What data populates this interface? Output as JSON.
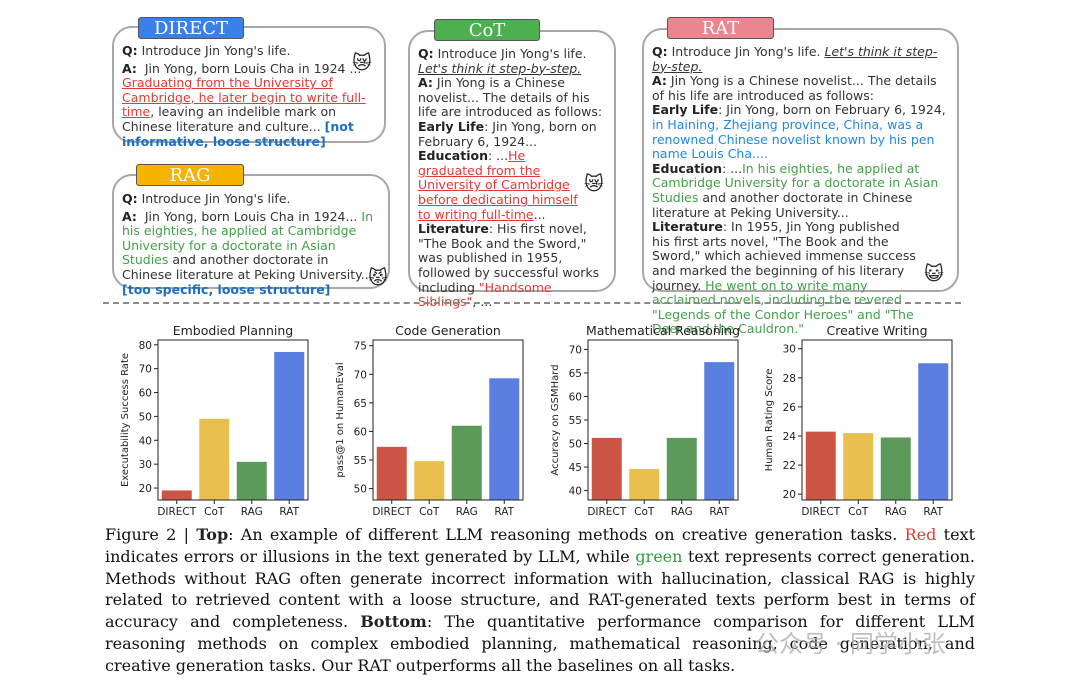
{
  "panels": {
    "direct": {
      "tag": "DIRECT",
      "q_label": "Q:",
      "q_text": "Introduce Jin Yong's life.",
      "a_label": "A:",
      "a_text1": "Jin Yong, born Louis Cha in 1924 ...",
      "a_red": "Graduating from the University of Cambridge, he later begin to write full-time",
      "a_text2": ", leaving an indelible mark on Chinese literature and culture...",
      "a_note": "[not informative, loose structure]"
    },
    "rag": {
      "tag": "RAG",
      "q_label": "Q:",
      "q_text": "Introduce Jin Yong's life.",
      "a_label": "A:",
      "a_text1": "Jin Yong, born Louis Cha in 1924...",
      "a_green": "In his eighties, he applied at Cambridge University for a doctorate in Asian Studies",
      "a_text2": "and another doctorate in Chinese literature at Peking University...",
      "a_note": "[too specific, loose structure]"
    },
    "cot": {
      "tag": "CoT",
      "q_label": "Q:",
      "q_text": "Introduce Jin Yong's life.",
      "q_italic": "Let's think it step-by-step.",
      "a_label": "A:",
      "a_text1": "Jin Yong is a Chinese novelist... The details of his life are introduced as follows:",
      "early_label": "Early Life",
      "early_text": ": Jin Yong, born on February 6, 1924...",
      "edu_label": "Education",
      "edu_text": ": ...",
      "edu_red": "He graduated from the University of Cambridge before dedicating himself to writing full-time",
      "edu_text2": "...",
      "lit_label": "Literature",
      "lit_text": ": His first novel, \"The Book and the Sword,\" was published in 1955, followed by successful works including",
      "lit_red": "\"Handsome Siblings\"",
      "lit_text2": ", ..."
    },
    "rat": {
      "tag": "RAT",
      "q_label": "Q:",
      "q_text": "Introduce Jin Yong's life.",
      "q_italic": "Let's think it step-by-step.",
      "a_label": "A:",
      "a_text1": "Jin Yong is a Chinese novelist... The details of his life are introduced as follows:",
      "early_label": "Early Life",
      "early_text": ": Jin Yong, born on February 6, 1924,",
      "early_blue": "in Haining, Zhejiang province, China, was a renowned Chinese novelist known by his pen name Louis Cha....",
      "edu_label": "Education",
      "edu_text": ": ...",
      "edu_green": "In his eighties, he applied at Cambridge University for a doctorate in Asian Studies",
      "edu_text2": "and another doctorate in Chinese literature at Peking University...",
      "lit_label": "Literature",
      "lit_text": ": In 1955, Jin Yong published his first arts novel, \"The Book and the Sword,\" which achieved immense success and marked the beginning of his literary journey.",
      "lit_green": "He went on to write many acclaimed novels, including the revered \"Legends of the Condor Heroes\" and \"The Deer and the Cauldron.\""
    }
  },
  "emojis": {
    "direct": "😿",
    "rag": "😾",
    "cot": "😿",
    "rat": "😺"
  },
  "colors": {
    "DIRECT": "#cd5545",
    "CoT": "#e9c050",
    "RAG": "#5c9a5a",
    "RAT": "#5a7fe0"
  },
  "chart_data": [
    {
      "type": "bar",
      "title": "Embodied Planning",
      "ylabel": "Executability Success Rate",
      "categories": [
        "DIRECT",
        "CoT",
        "RAG",
        "RAT"
      ],
      "values": [
        19,
        49,
        31,
        77
      ],
      "ylim": [
        15,
        82
      ],
      "yticks": [
        20,
        30,
        40,
        50,
        60,
        70,
        80
      ]
    },
    {
      "type": "bar",
      "title": "Code Generation",
      "ylabel": "pass@1 on HumanEval",
      "categories": [
        "DIRECT",
        "CoT",
        "RAG",
        "RAT"
      ],
      "values": [
        57.3,
        54.8,
        61.0,
        69.3
      ],
      "ylim": [
        48,
        76
      ],
      "yticks": [
        50,
        55,
        60,
        65,
        70,
        75
      ]
    },
    {
      "type": "bar",
      "title": "Mathematical Reasoning",
      "ylabel": "Accuracy on GSMHard",
      "categories": [
        "DIRECT",
        "CoT",
        "RAG",
        "RAT"
      ],
      "values": [
        51.2,
        44.6,
        51.2,
        67.3
      ],
      "ylim": [
        38,
        72
      ],
      "yticks": [
        40,
        45,
        50,
        55,
        60,
        65,
        70
      ]
    },
    {
      "type": "bar",
      "title": "Creative Writing",
      "ylabel": "Human Rating Score",
      "categories": [
        "DIRECT",
        "CoT",
        "RAG",
        "RAT"
      ],
      "values": [
        24.3,
        24.2,
        23.9,
        29.0
      ],
      "ylim": [
        19.6,
        30.6
      ],
      "yticks": [
        20,
        22,
        24,
        26,
        28,
        30
      ]
    }
  ],
  "caption": {
    "fig_label": "Figure 2 | ",
    "top_label": "Top",
    "p1": ": An example of different LLM reasoning methods on creative generation tasks.",
    "red_word": "Red",
    "p2": "text indicates errors or illusions in the text generated by LLM, while",
    "green_word": "green",
    "p3": "text represents correct generation. Methods without RAG often generate incorrect information with hallucination, classical RAG is highly related to retrieved content with a loose structure, and RAT-generated texts perform best in terms of accuracy and completeness.",
    "bottom_label": "Bottom",
    "p4": ": The quantitative performance comparison for different LLM reasoning methods on complex embodied planning, mathematical reasoning, code generation, and creative generation tasks. Our RAT outperforms all the baselines on all tasks."
  },
  "watermark": "公众号 · 同学小张"
}
